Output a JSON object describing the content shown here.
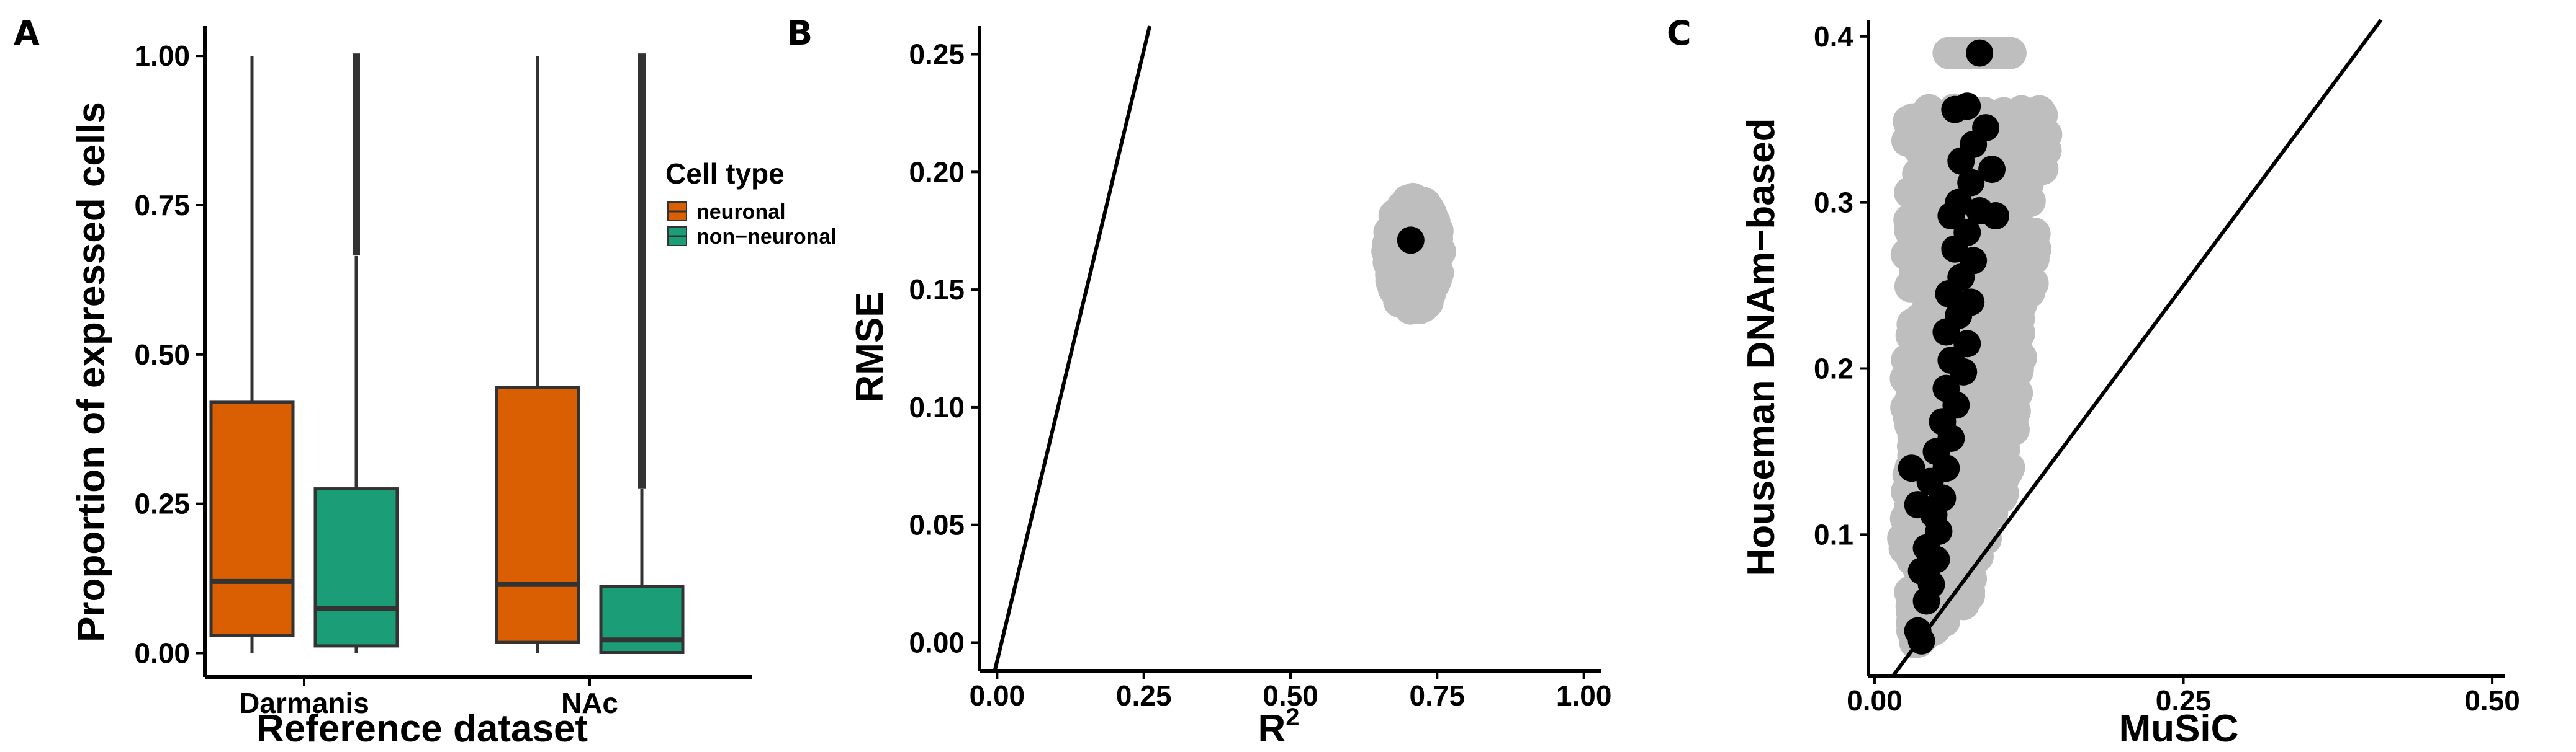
{
  "panels": {
    "a": "A",
    "b": "B",
    "c": "C"
  },
  "chart_data": [
    {
      "type": "box",
      "panel": "A",
      "xlabel": "Reference dataset",
      "ylabel": "Proportion of expressed cells",
      "ylim": [
        -0.04,
        1.05
      ],
      "yticks": [
        0.0,
        0.25,
        0.5,
        0.75,
        1.0
      ],
      "ytick_labels": [
        "0.00",
        "0.25",
        "0.50",
        "0.75",
        "1.00"
      ],
      "categories": [
        "Darmanis",
        "NAc"
      ],
      "legend": {
        "title": "Cell type",
        "placement": "right",
        "entries": [
          {
            "label": "neuronal",
            "color": "#D95F02"
          },
          {
            "label": "non−neuronal",
            "color": "#1B9E77"
          }
        ]
      },
      "boxes": [
        {
          "category": "Darmanis",
          "group": "neuronal",
          "color": "#D95F02",
          "min": 0.0,
          "q1": 0.03,
          "median": 0.12,
          "q3": 0.42,
          "max": 1.0,
          "outliers": []
        },
        {
          "category": "Darmanis",
          "group": "non−neuronal",
          "color": "#1B9E77",
          "min": 0.0,
          "q1": 0.012,
          "median": 0.075,
          "q3": 0.275,
          "max": 0.665,
          "outliers": [
            0.67,
            0.7,
            0.73,
            0.76,
            0.79,
            0.82,
            0.85,
            0.88,
            0.91,
            0.94,
            0.97,
            1.0
          ]
        },
        {
          "category": "NAc",
          "group": "neuronal",
          "color": "#D95F02",
          "min": 0.0,
          "q1": 0.018,
          "median": 0.115,
          "q3": 0.445,
          "max": 1.0,
          "outliers": []
        },
        {
          "category": "NAc",
          "group": "non−neuronal",
          "color": "#1B9E77",
          "min": 0.0,
          "q1": 0.001,
          "median": 0.022,
          "q3": 0.112,
          "max": 0.275,
          "outliers": [
            0.28,
            0.31,
            0.34,
            0.37,
            0.4,
            0.43,
            0.46,
            0.49,
            0.52,
            0.55,
            0.58,
            0.61,
            0.64,
            0.67,
            0.7,
            0.73,
            0.76,
            0.79,
            0.82,
            0.85,
            0.88,
            0.91,
            0.94,
            0.97,
            1.0
          ]
        }
      ]
    },
    {
      "type": "scatter",
      "panel": "B",
      "xlabel": "R",
      "xlabel_superscript": "2",
      "ylabel": "RMSE",
      "xlim": [
        -0.03,
        1.03
      ],
      "ylim": [
        -0.012,
        0.262
      ],
      "xticks": [
        0.0,
        0.25,
        0.5,
        0.75,
        1.0
      ],
      "xtick_labels": [
        "0.00",
        "0.25",
        "0.50",
        "0.75",
        "1.00"
      ],
      "yticks": [
        0.0,
        0.05,
        0.1,
        0.15,
        0.2,
        0.25
      ],
      "ytick_labels": [
        "0.00",
        "0.05",
        "0.10",
        "0.15",
        "0.20",
        "0.25"
      ],
      "reference_line": {
        "x1": -0.004,
        "y1": -0.012,
        "x2": 0.26,
        "y2": 0.262
      },
      "cloud_color": "#BEBEBE",
      "highlight_color": "#000000",
      "cloud_center": {
        "x": 0.71,
        "y": 0.165
      },
      "cloud_spread": {
        "x": 0.045,
        "y": 0.015
      },
      "highlight": [
        {
          "x": 0.705,
          "y": 0.171
        }
      ]
    },
    {
      "type": "scatter",
      "panel": "C",
      "xlabel": "MuSiC",
      "ylabel": "Houseman DNAm−based",
      "xlim": [
        -0.005,
        0.51
      ],
      "ylim": [
        0.015,
        0.41
      ],
      "xticks": [
        0.0,
        0.25,
        0.5
      ],
      "xtick_labels": [
        "0.00",
        "0.25",
        "0.50"
      ],
      "yticks": [
        0.1,
        0.2,
        0.3,
        0.4
      ],
      "ytick_labels": [
        "0.1",
        "0.2",
        "0.3",
        "0.4"
      ],
      "reference_line": {
        "x1": 0.015,
        "y1": 0.015,
        "x2": 0.41,
        "y2": 0.41
      },
      "cloud_color": "#BEBEBE",
      "highlight_color": "#000000",
      "gray_band": [
        {
          "y": 0.035,
          "lo": 0.03,
          "hi": 0.045
        },
        {
          "y": 0.06,
          "lo": 0.03,
          "hi": 0.075
        },
        {
          "y": 0.1,
          "lo": 0.02,
          "hi": 0.095
        },
        {
          "y": 0.14,
          "lo": 0.025,
          "hi": 0.11
        },
        {
          "y": 0.18,
          "lo": 0.025,
          "hi": 0.115
        },
        {
          "y": 0.22,
          "lo": 0.025,
          "hi": 0.125
        },
        {
          "y": 0.26,
          "lo": 0.025,
          "hi": 0.13
        },
        {
          "y": 0.3,
          "lo": 0.025,
          "hi": 0.135
        },
        {
          "y": 0.34,
          "lo": 0.025,
          "hi": 0.14
        },
        {
          "y": 0.356,
          "lo": 0.03,
          "hi": 0.14
        }
      ],
      "gray_top": [
        {
          "x": 0.06,
          "y": 0.39
        },
        {
          "x": 0.11,
          "y": 0.39
        }
      ],
      "highlight": [
        {
          "x": 0.085,
          "y": 0.39
        },
        {
          "x": 0.075,
          "y": 0.358
        },
        {
          "x": 0.065,
          "y": 0.356
        },
        {
          "x": 0.09,
          "y": 0.345
        },
        {
          "x": 0.08,
          "y": 0.335
        },
        {
          "x": 0.07,
          "y": 0.325
        },
        {
          "x": 0.095,
          "y": 0.32
        },
        {
          "x": 0.078,
          "y": 0.312
        },
        {
          "x": 0.068,
          "y": 0.3
        },
        {
          "x": 0.085,
          "y": 0.295
        },
        {
          "x": 0.062,
          "y": 0.292
        },
        {
          "x": 0.098,
          "y": 0.292
        },
        {
          "x": 0.075,
          "y": 0.282
        },
        {
          "x": 0.065,
          "y": 0.272
        },
        {
          "x": 0.08,
          "y": 0.265
        },
        {
          "x": 0.07,
          "y": 0.255
        },
        {
          "x": 0.06,
          "y": 0.245
        },
        {
          "x": 0.078,
          "y": 0.24
        },
        {
          "x": 0.068,
          "y": 0.232
        },
        {
          "x": 0.058,
          "y": 0.222
        },
        {
          "x": 0.075,
          "y": 0.215
        },
        {
          "x": 0.062,
          "y": 0.205
        },
        {
          "x": 0.072,
          "y": 0.198
        },
        {
          "x": 0.058,
          "y": 0.188
        },
        {
          "x": 0.066,
          "y": 0.178
        },
        {
          "x": 0.055,
          "y": 0.168
        },
        {
          "x": 0.062,
          "y": 0.158
        },
        {
          "x": 0.05,
          "y": 0.15
        },
        {
          "x": 0.058,
          "y": 0.14
        },
        {
          "x": 0.045,
          "y": 0.132
        },
        {
          "x": 0.055,
          "y": 0.122
        },
        {
          "x": 0.035,
          "y": 0.118
        },
        {
          "x": 0.048,
          "y": 0.112
        },
        {
          "x": 0.052,
          "y": 0.102
        },
        {
          "x": 0.042,
          "y": 0.092
        },
        {
          "x": 0.05,
          "y": 0.085
        },
        {
          "x": 0.038,
          "y": 0.078
        },
        {
          "x": 0.046,
          "y": 0.07
        },
        {
          "x": 0.042,
          "y": 0.06
        },
        {
          "x": 0.035,
          "y": 0.042
        },
        {
          "x": 0.038,
          "y": 0.036
        },
        {
          "x": 0.03,
          "y": 0.14
        }
      ]
    }
  ]
}
